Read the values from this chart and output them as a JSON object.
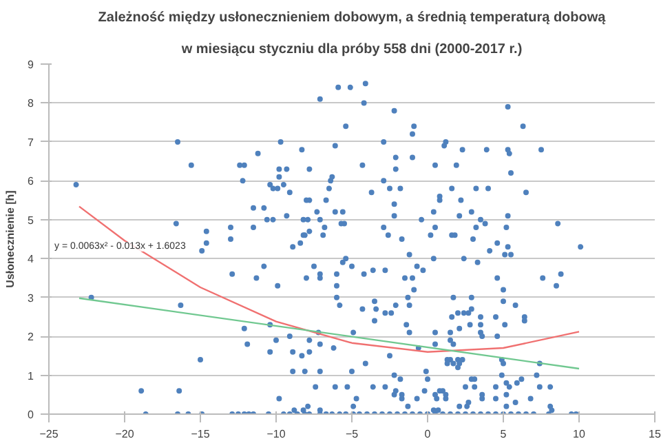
{
  "chart_data": {
    "type": "scatter",
    "title": "Zależność między usłonecznieniem dobowym, a średnią temperaturą dobową",
    "subtitle": "w miesiącu styczniu dla próby 558 dni (2000-2017 r.)",
    "ylabel": "Usłonecznienie [h]",
    "xlim": [
      -25,
      15
    ],
    "xticks": [
      -25,
      -20,
      -15,
      -10,
      -5,
      0,
      5,
      10,
      15
    ],
    "ylim": [
      0,
      9
    ],
    "yticks": [
      0,
      1,
      2,
      3,
      4,
      5,
      6,
      7,
      8,
      9
    ],
    "grid": "y",
    "annotations": [
      "y = 0.0063x² - 0.013x + 1.6023"
    ],
    "series": [
      {
        "marker": "circle",
        "color": "#4f81bd",
        "x": [
          -23.2,
          -16.5,
          -15.6,
          -5.9,
          -7.1,
          -5.4,
          -9.7,
          -8.3,
          -6.1,
          -11.2,
          -12.4,
          -12.1,
          -12.2,
          -9.8,
          -9.3,
          -7.8,
          -9.8,
          -10.4,
          -10.2,
          -9.9,
          -9.5,
          -9.1,
          -6.3,
          -6.4,
          -6.5,
          -6.7,
          -6.1,
          -5.6,
          -8.0,
          -7.8,
          -7.3,
          -11.5,
          -10.8,
          -9.3,
          -10.6,
          -10.2,
          -8.2,
          -7.9,
          -7.1,
          -16.6,
          -11.5,
          -13.0,
          -14.6,
          -8.2,
          -8.1,
          -6.9,
          -7.8,
          -5.7,
          -5.5,
          -6.8,
          -5.1,
          -4.1,
          -4.2,
          -2.2,
          -0.9,
          -1.0,
          -2.9,
          5.3,
          6.3,
          1.2,
          1.1,
          2.3,
          3.9,
          5.3,
          5.4,
          7.5,
          -2.1,
          -1.0,
          -4.3,
          -2.1,
          0.5,
          1.9,
          5.5,
          -2.9,
          -2.5,
          -1.8,
          -3.7,
          -2.2,
          -2.2,
          1.6,
          3.2,
          4.0,
          6.5,
          0.8,
          0.8,
          2.2,
          0.4,
          2.9,
          2.1,
          5.3,
          -0.4,
          3.5,
          3.8,
          8.6,
          0.5,
          3.2,
          5.2,
          -2.9,
          -2.6,
          -1.7,
          0.2,
          1.6,
          1.8,
          3.0,
          -14.6,
          -14.9,
          -13.0,
          -12.9,
          -11.3,
          -10.8,
          -9.9,
          -8.9,
          -8.4,
          -7.5,
          -8.0,
          -7.1,
          -7.1,
          -6.0,
          -6.0,
          -5.6,
          -5.4,
          -6.0,
          -5.8,
          -22.2,
          -16.3,
          -12.1,
          -10.4,
          -11.9,
          -10.4,
          -10.0,
          -9.1,
          -8.9,
          -8.3,
          -7.8,
          -7.8,
          -7.2,
          -7.1,
          -6.2,
          -15.0,
          -8.9,
          -8.1,
          -7.1,
          -7.4,
          -6.1,
          -18.9,
          -16.4,
          -9.8,
          -7.9,
          -8.8,
          -8.2,
          -7.1,
          -18.6,
          -16.5,
          -15.8,
          -14.9,
          -12.9,
          -12.5,
          -12.1,
          -11.8,
          -11.5,
          -10.5,
          -9.5,
          -9.1,
          -8.6,
          -8.1,
          -7.8,
          -7.1,
          -6.7,
          -6.3,
          -5.8,
          -5.4,
          10.1,
          0.4,
          2.4,
          3.3,
          4.1,
          4.6,
          5.1,
          5.3,
          5.5,
          -5.0,
          -4.2,
          -3.6,
          -2.8,
          -1.5,
          -1.0,
          -0.7,
          -0.3,
          -1.2,
          -0.9,
          4.6,
          5.0,
          5.0,
          7.6,
          8.8,
          8.5,
          -1.3,
          -1.2,
          -3.5,
          -3.4,
          -3.5,
          -4.3,
          -2.8,
          -2.4,
          -2.1,
          -1.4,
          -1.2,
          -4.9,
          1.7,
          2.9,
          1.6,
          2.0,
          2.4,
          2.7,
          2.9,
          3.5,
          2.8,
          3.5,
          3.5,
          3.6,
          4.5,
          5.1,
          4.6,
          5.8,
          6.4,
          6.4,
          1.5,
          2.1,
          1.5,
          1.7,
          0.5,
          0.5,
          -2.5,
          -4.1,
          -5.0,
          -0.1,
          -0.6,
          1.5,
          1.7,
          2.0,
          2.1,
          2.3,
          1.3,
          1.3,
          2.0,
          3.1,
          4.9,
          5.0,
          4.9,
          5.2,
          5.4,
          5.9,
          6.2,
          7.4,
          7.2,
          7.4,
          8.1,
          6.8,
          8.1,
          8.2,
          -5.3,
          -2.2,
          -1.8,
          -2.8,
          -3.6,
          -2.1,
          -1.7,
          -1.7,
          -1.3,
          -0.7,
          -2.2,
          -4.7,
          -4.9,
          -0.2,
          0.0,
          0.8,
          1.0,
          1.2,
          1.2,
          0.5,
          0.6,
          2.5,
          2.9,
          3.1,
          3.6,
          3.6,
          2.7,
          2.6,
          2.1,
          4.5,
          4.5,
          5.2,
          5.2,
          5.8,
          0.0,
          0.4,
          0.7,
          -4.9,
          -4.5,
          -4.0,
          -3.5,
          -3.0,
          -2.5,
          -2.0,
          -1.5,
          -1.0,
          -0.5,
          0.0,
          0.5,
          1.0,
          1.5,
          2.0,
          2.5,
          3.0,
          3.5,
          4.0,
          4.5,
          5.0,
          5.5,
          6.0,
          6.5,
          7.0,
          8.0,
          9.5,
          9.8
        ],
        "values": [
          5.9,
          7.0,
          6.4,
          8.4,
          8.1,
          7.4,
          7.0,
          6.8,
          6.9,
          6.7,
          6.4,
          6.4,
          6.0,
          6.3,
          6.3,
          6.3,
          6.1,
          5.9,
          5.8,
          5.8,
          5.9,
          5.7,
          6.1,
          6.0,
          5.8,
          5.5,
          5.2,
          5.2,
          5.5,
          5.5,
          5.2,
          5.3,
          5.3,
          5.1,
          5.0,
          5.0,
          5.0,
          5.0,
          5.0,
          4.9,
          4.8,
          4.8,
          4.7,
          4.6,
          4.6,
          4.6,
          4.7,
          4.9,
          4.9,
          4.8,
          8.4,
          8.5,
          8.0,
          7.8,
          7.4,
          7.2,
          7.0,
          7.9,
          7.4,
          7.0,
          6.9,
          6.8,
          6.8,
          6.8,
          6.7,
          6.8,
          6.6,
          6.6,
          6.4,
          6.3,
          6.4,
          6.4,
          6.2,
          6.0,
          5.8,
          5.8,
          5.7,
          5.4,
          5.1,
          5.8,
          5.8,
          5.8,
          5.7,
          5.6,
          5.5,
          5.5,
          5.2,
          5.2,
          5.1,
          5.1,
          5.0,
          5.0,
          4.9,
          4.9,
          4.8,
          4.8,
          4.8,
          4.8,
          4.6,
          4.5,
          4.6,
          4.6,
          4.6,
          4.5,
          4.4,
          4.2,
          4.5,
          3.6,
          3.5,
          3.8,
          3.3,
          4.3,
          4.4,
          3.8,
          3.5,
          3.6,
          3.5,
          3.6,
          3.3,
          3.9,
          4.0,
          3.0,
          2.8,
          3.0,
          2.8,
          2.2,
          2.3,
          1.8,
          1.6,
          1.9,
          2.0,
          1.6,
          1.5,
          1.9,
          1.6,
          2.1,
          1.8,
          1.7,
          1.4,
          1.1,
          1.1,
          1.1,
          0.7,
          0.7,
          0.6,
          0.6,
          0.4,
          0.2,
          0.1,
          0.1,
          0.1,
          0,
          0,
          0,
          0,
          0,
          0,
          0,
          0,
          0,
          0,
          0,
          0,
          0,
          0,
          0,
          0,
          0,
          0,
          0,
          0,
          4.3,
          4.0,
          4.0,
          3.9,
          4.2,
          4.4,
          4.1,
          4.3,
          4.1,
          3.8,
          3.6,
          3.7,
          3.7,
          3.5,
          3.5,
          3.8,
          3.7,
          4.1,
          3.2,
          3.5,
          3.2,
          2.9,
          3.5,
          3.6,
          3.3,
          3.0,
          2.8,
          2.9,
          2.7,
          2.4,
          2.7,
          2.6,
          2.6,
          2.8,
          2.3,
          2.1,
          2.1,
          3.0,
          3.0,
          2.5,
          2.6,
          2.6,
          2.6,
          2.7,
          2.5,
          2.3,
          2.3,
          2.1,
          2.0,
          2.5,
          2.3,
          2.0,
          2.8,
          2.5,
          2.4,
          2.1,
          2.2,
          1.9,
          1.8,
          2.1,
          1.8,
          1.5,
          1.3,
          1.1,
          1.1,
          1.7,
          1.4,
          1.3,
          1.4,
          1.3,
          1.4,
          1.3,
          1.4,
          1.2,
          0.9,
          1.4,
          1.3,
          1.0,
          0.8,
          0.7,
          0.8,
          0.9,
          1.3,
          1.0,
          0.7,
          0.7,
          0.4,
          0.2,
          0.1,
          0.7,
          1.0,
          0.9,
          0.7,
          0.7,
          0.6,
          0.5,
          0.4,
          0.2,
          0.4,
          0.5,
          0.4,
          0.2,
          0.6,
          0.9,
          0.6,
          0.6,
          0.5,
          0.4,
          0.5,
          0.4,
          0.7,
          0.9,
          0.7,
          0.4,
          0.5,
          0.3,
          0.2,
          0.2,
          0.7,
          0.4,
          0.5,
          0.2,
          0.3,
          0.0,
          0.1,
          0.1,
          0,
          0,
          0,
          0,
          0,
          0,
          0,
          0,
          0,
          0,
          0,
          0,
          0,
          0,
          0,
          0,
          0,
          0,
          0,
          0,
          0,
          0,
          0,
          0,
          0,
          0,
          0,
          0
        ]
      },
      {
        "type": "line",
        "marker": "none",
        "color": "#f07070",
        "x": [
          -23,
          -20,
          -15,
          -10,
          -5,
          0,
          5,
          10
        ],
        "values": [
          5.34,
          4.46,
          3.26,
          2.38,
          1.83,
          1.6,
          1.7,
          2.12
        ]
      },
      {
        "type": "line",
        "marker": "none",
        "color": "#70c890",
        "x": [
          -23,
          10
        ],
        "values": [
          2.98,
          1.17
        ]
      }
    ]
  }
}
